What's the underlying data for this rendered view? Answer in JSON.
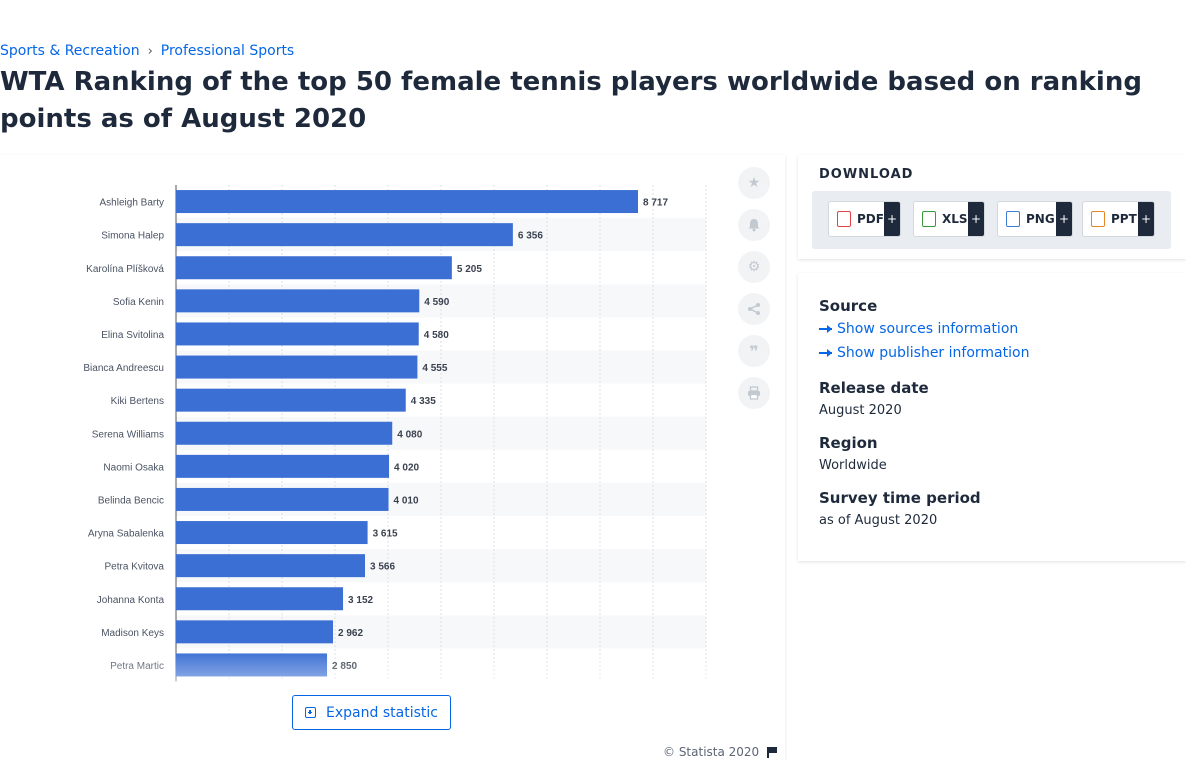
{
  "breadcrumb": {
    "item1": "Sports & Recreation",
    "separator": "›",
    "item2": "Professional Sports"
  },
  "title": "WTA Ranking of the top 50 female tennis players worldwide based on ranking points as of August 2020",
  "chart_data": {
    "type": "bar",
    "orientation": "horizontal",
    "categories": [
      "Ashleigh Barty",
      "Simona Halep",
      "Karolína Plíšková",
      "Sofia Kenin",
      "Elina Svitolina",
      "Bianca Andreescu",
      "Kiki Bertens",
      "Serena Williams",
      "Naomi Osaka",
      "Belinda Bencic",
      "Aryna Sabalenka",
      "Petra Kvitova",
      "Johanna Konta",
      "Madison Keys",
      "Petra Martic"
    ],
    "values": [
      8717,
      6356,
      5205,
      4590,
      4580,
      4555,
      4335,
      4080,
      4020,
      4010,
      3615,
      3566,
      3152,
      2962,
      2850
    ],
    "value_labels": [
      "8 717",
      "6 356",
      "5 205",
      "4 590",
      "4 580",
      "4 555",
      "4 335",
      "4 080",
      "4 020",
      "4 010",
      "3 615",
      "3 566",
      "3 152",
      "2 962",
      "2 850"
    ],
    "xlim": [
      0,
      10000
    ],
    "grid": true,
    "bar_color": "#3b6fd4"
  },
  "tools": {
    "star": "star-icon",
    "bell": "bell-icon",
    "gear": "gear-icon",
    "share": "share-icon",
    "quote": "quote-icon",
    "print": "print-icon"
  },
  "expand_label": "Expand statistic",
  "copyright": "© Statista 2020",
  "download": {
    "title": "DOWNLOAD",
    "buttons": [
      {
        "label": "PDF",
        "plus": "+",
        "color": "#e04444"
      },
      {
        "label": "XLS",
        "plus": "+",
        "color": "#3a9a3a"
      },
      {
        "label": "PNG",
        "plus": "+",
        "color": "#3b7ed4"
      },
      {
        "label": "PPT",
        "plus": "+",
        "color": "#e8842a"
      }
    ]
  },
  "info": {
    "source_label": "Source",
    "show_sources": "Show sources information",
    "show_publisher": "Show publisher information",
    "release_label": "Release date",
    "release_value": "August 2020",
    "region_label": "Region",
    "region_value": "Worldwide",
    "survey_label": "Survey time period",
    "survey_value": "as of August 2020"
  }
}
